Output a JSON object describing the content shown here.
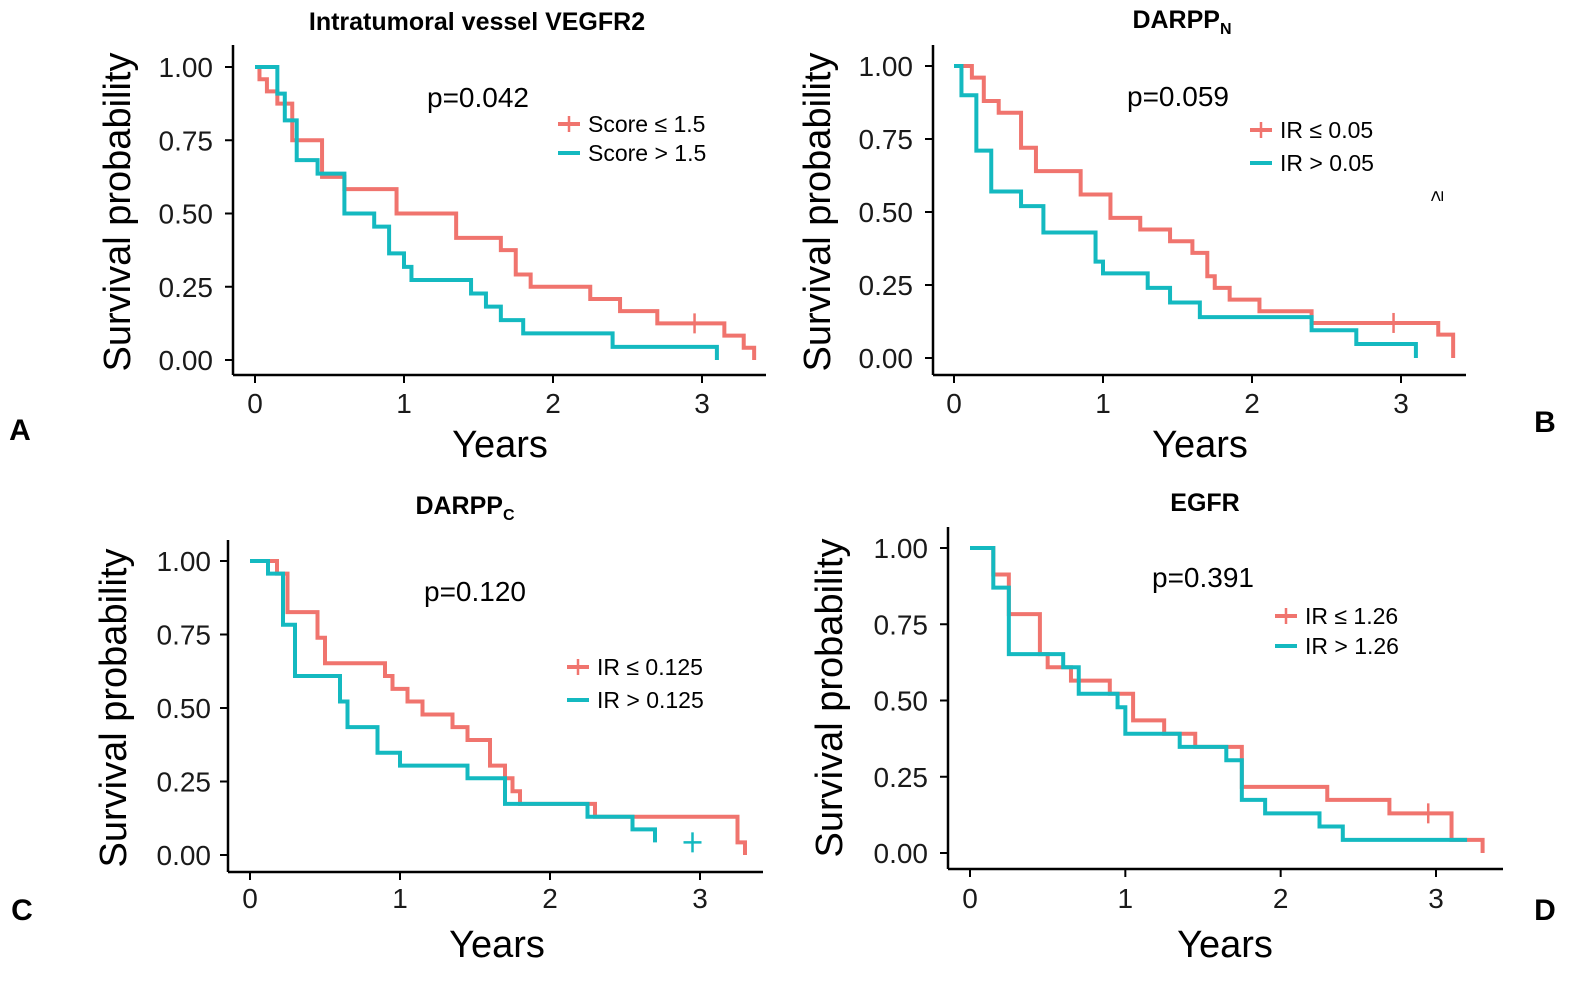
{
  "colors": {
    "low": "#F0746E",
    "high": "#14B9C0",
    "axis": "#000000"
  },
  "chart_data": [
    {
      "letter": "A",
      "type": "line",
      "title": "Intratumoral vessel VEGFR2",
      "title_main": "Intratumoral vessel VEGFR2",
      "title_sub": "",
      "xlabel": "Years",
      "ylabel": "Survival probability",
      "xlim": [
        0,
        3.4
      ],
      "ylim": [
        0,
        1
      ],
      "xticks": [
        "0",
        "1",
        "2",
        "3"
      ],
      "yticks": [
        "0.00",
        "0.25",
        "0.50",
        "0.75",
        "1.00"
      ],
      "p_value": "p=0.042",
      "legend": [
        "Score  ≤ 1.5",
        "Score  > 1.5"
      ],
      "series": [
        {
          "name": "Score ≤ 1.5",
          "x": [
            0,
            0.03,
            0.08,
            0.15,
            0.25,
            0.45,
            0.6,
            0.95,
            1.05,
            1.35,
            1.65,
            1.75,
            1.85,
            2.05,
            2.25,
            2.45,
            2.7,
            2.95,
            3.15,
            3.28,
            3.35
          ],
          "y": [
            1,
            0.958,
            0.917,
            0.875,
            0.75,
            0.625,
            0.583,
            0.5,
            0.5,
            0.417,
            0.375,
            0.292,
            0.25,
            0.25,
            0.208,
            0.167,
            0.125,
            0.125,
            0.083,
            0.042,
            0
          ],
          "censor_x": [
            2.95
          ],
          "censor_y": [
            0.125
          ]
        },
        {
          "name": "Score > 1.5",
          "x": [
            0,
            0.15,
            0.2,
            0.28,
            0.42,
            0.6,
            0.8,
            0.9,
            1.0,
            1.05,
            1.15,
            1.45,
            1.55,
            1.65,
            1.8,
            2.0,
            2.4,
            2.8,
            3.1
          ],
          "y": [
            1,
            0.909,
            0.818,
            0.682,
            0.636,
            0.5,
            0.455,
            0.364,
            0.318,
            0.273,
            0.273,
            0.227,
            0.182,
            0.136,
            0.091,
            0.091,
            0.045,
            0.045,
            0
          ],
          "censor_x": [],
          "censor_y": []
        }
      ]
    },
    {
      "letter": "B",
      "type": "line",
      "title": "DARPP_N",
      "title_main": "DARPP",
      "title_sub": "N",
      "xlabel": "Years",
      "ylabel": "Survival probability",
      "xlim": [
        0,
        3.4
      ],
      "ylim": [
        0,
        1
      ],
      "xticks": [
        "0",
        "1",
        "2",
        "3"
      ],
      "yticks": [
        "0.00",
        "0.25",
        "0.50",
        "0.75",
        "1.00"
      ],
      "p_value": "p=0.059",
      "legend": [
        "IR ≤  0.05",
        "IR >  0.05"
      ],
      "stray_symbol": "≥",
      "series": [
        {
          "name": "IR ≤ 0.05",
          "x": [
            0,
            0.12,
            0.2,
            0.3,
            0.45,
            0.55,
            0.85,
            1.05,
            1.25,
            1.45,
            1.6,
            1.7,
            1.75,
            1.85,
            2.05,
            2.4,
            2.95,
            3.25,
            3.35
          ],
          "y": [
            1,
            0.96,
            0.88,
            0.84,
            0.72,
            0.64,
            0.56,
            0.48,
            0.44,
            0.4,
            0.36,
            0.28,
            0.24,
            0.2,
            0.16,
            0.12,
            0.12,
            0.08,
            0
          ],
          "censor_x": [
            2.95
          ],
          "censor_y": [
            0.12
          ]
        },
        {
          "name": "IR > 0.05",
          "x": [
            0,
            0.05,
            0.15,
            0.25,
            0.45,
            0.6,
            0.95,
            1.0,
            1.3,
            1.45,
            1.65,
            2.4,
            2.7,
            2.95,
            3.1
          ],
          "y": [
            1,
            0.9,
            0.71,
            0.57,
            0.52,
            0.43,
            0.33,
            0.29,
            0.24,
            0.19,
            0.14,
            0.095,
            0.048,
            0.048,
            0
          ],
          "censor_x": [],
          "censor_y": []
        }
      ]
    },
    {
      "letter": "C",
      "type": "line",
      "title": "DARPP_C",
      "title_main": "DARPP",
      "title_sub": "C",
      "xlabel": "Years",
      "ylabel": "Survival probability",
      "xlim": [
        0,
        3.4
      ],
      "ylim": [
        0,
        1
      ],
      "xticks": [
        "0",
        "1",
        "2",
        "3"
      ],
      "yticks": [
        "0.00",
        "0.25",
        "0.50",
        "0.75",
        "1.00"
      ],
      "p_value": "p=0.120",
      "legend": [
        "IR ≤  0.125",
        "IR >  0.125"
      ],
      "series": [
        {
          "name": "IR ≤ 0.125",
          "x": [
            0,
            0.18,
            0.25,
            0.45,
            0.5,
            0.9,
            0.95,
            1.05,
            1.15,
            1.35,
            1.45,
            1.6,
            1.7,
            1.75,
            1.8,
            2.3,
            2.95,
            3.25,
            3.3
          ],
          "y": [
            1,
            0.957,
            0.826,
            0.739,
            0.652,
            0.609,
            0.565,
            0.522,
            0.478,
            0.435,
            0.391,
            0.304,
            0.261,
            0.217,
            0.174,
            0.13,
            0.13,
            0.043,
            0
          ],
          "censor_x": [],
          "censor_y": []
        },
        {
          "name": "IR > 0.125",
          "x": [
            0,
            0.12,
            0.22,
            0.3,
            0.6,
            0.65,
            0.85,
            1.0,
            1.05,
            1.45,
            1.7,
            2.25,
            2.55,
            2.7
          ],
          "y": [
            1,
            0.957,
            0.783,
            0.609,
            0.522,
            0.435,
            0.348,
            0.304,
            0.304,
            0.261,
            0.174,
            0.13,
            0.087,
            0.043
          ],
          "censor_x": [
            2.95
          ],
          "censor_y": [
            0.043
          ]
        }
      ]
    },
    {
      "letter": "D",
      "type": "line",
      "title": "EGFR",
      "title_main": "EGFR",
      "title_sub": "",
      "xlabel": "Years",
      "ylabel": "Survival probability",
      "xlim": [
        0,
        3.4
      ],
      "ylim": [
        0,
        1
      ],
      "xticks": [
        "0",
        "1",
        "2",
        "3"
      ],
      "yticks": [
        "0.00",
        "0.25",
        "0.50",
        "0.75",
        "1.00"
      ],
      "p_value": "p=0.391",
      "legend": [
        "IR  ≤ 1.26",
        "IR  > 1.26"
      ],
      "series": [
        {
          "name": "IR ≤ 1.26",
          "x": [
            0,
            0.15,
            0.25,
            0.45,
            0.5,
            0.65,
            0.9,
            1.05,
            1.25,
            1.45,
            1.75,
            2.3,
            2.7,
            2.95,
            3.1,
            3.3
          ],
          "y": [
            1,
            0.913,
            0.783,
            0.652,
            0.609,
            0.565,
            0.522,
            0.435,
            0.391,
            0.348,
            0.217,
            0.174,
            0.13,
            0.13,
            0.043,
            0
          ],
          "censor_x": [
            2.95
          ],
          "censor_y": [
            0.13
          ]
        },
        {
          "name": "IR > 1.26",
          "x": [
            0,
            0.15,
            0.25,
            0.6,
            0.7,
            0.95,
            1.0,
            1.35,
            1.65,
            1.75,
            1.9,
            2.25,
            2.4,
            3.2
          ],
          "y": [
            1,
            0.87,
            0.652,
            0.609,
            0.522,
            0.478,
            0.391,
            0.348,
            0.304,
            0.174,
            0.13,
            0.087,
            0.043,
            0.043
          ],
          "censor_x": [],
          "censor_y": []
        }
      ]
    }
  ]
}
